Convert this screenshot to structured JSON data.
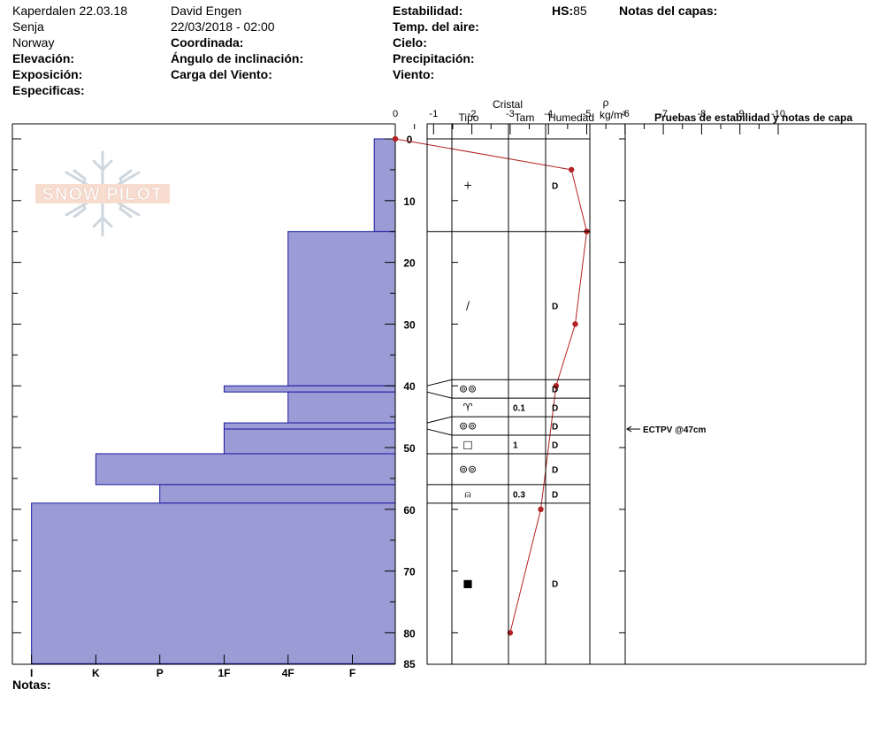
{
  "header": {
    "location_title": "Kaperdalen 22.03.18",
    "region": "Senja",
    "country": "Norway",
    "observer": "David Engen",
    "datetime": "22/03/2018 - 02:00",
    "labels": {
      "elevation": "Elevación:",
      "aspect": "Exposición:",
      "specifics": "Especificas:",
      "coordinate": "Coordinada:",
      "slope": "Ángulo de inclinación:",
      "wind_load": "Carga del Viento:",
      "stability": "Estabilidad:",
      "air_temp": "Temp. del aire:",
      "sky": "Cielo:",
      "precip": "Precipitación:",
      "wind": "Viento:",
      "hs_label": "HS:",
      "layer_notes": "Notas del capas:"
    },
    "hs_value": "85"
  },
  "footer": {
    "notes_label": "Notas:"
  },
  "table_headers": {
    "crystal": "Cristal",
    "type": "Tipo",
    "size": "Tam",
    "moisture": "Humedad",
    "rho": "ρ",
    "density_unit": "kg/m³",
    "tests": "Pruebas de estabilidad y notas de capa"
  },
  "watermark": "SNOW PILOT",
  "colors": {
    "hardness_fill": "#9b9bd6",
    "hardness_stroke": "#1a1aa0",
    "temp_line": "#b22222"
  },
  "chart_data": {
    "type": "snow-profile",
    "temp_axis": {
      "min": -10,
      "max": 0,
      "ticks": [
        "-10",
        "-9",
        "-8",
        "-7",
        "-6",
        "-5",
        "-4",
        "-3",
        "-2",
        "-1",
        "0"
      ]
    },
    "depth_axis": {
      "min": 0,
      "max": 85,
      "major_ticks": [
        0,
        10,
        20,
        30,
        40,
        50,
        60,
        70,
        80
      ],
      "labels": [
        "0",
        "10",
        "20",
        "30",
        "40",
        "50",
        "60",
        "70",
        "80",
        "85"
      ]
    },
    "hardness_axis": {
      "labels": [
        "I",
        "K",
        "P",
        "1F",
        "4F",
        "F"
      ],
      "values": [
        9.5,
        7.82,
        6.15,
        4.47,
        2.8,
        1.12
      ]
    },
    "hardness_layers": [
      {
        "top": 0,
        "bottom": 15,
        "hardness_x": 0.55
      },
      {
        "top": 15,
        "bottom": 40,
        "hardness_x": 2.8
      },
      {
        "top": 40,
        "bottom": 41,
        "hardness_x": 4.47
      },
      {
        "top": 41,
        "bottom": 46,
        "hardness_x": 2.8
      },
      {
        "top": 46,
        "bottom": 47,
        "hardness_x": 4.47
      },
      {
        "top": 47,
        "bottom": 51,
        "hardness_x": 4.47
      },
      {
        "top": 51,
        "bottom": 56,
        "hardness_x": 7.82
      },
      {
        "top": 56,
        "bottom": 59,
        "hardness_x": 6.15
      },
      {
        "top": 59,
        "bottom": 85,
        "hardness_x": 9.5
      }
    ],
    "temperature_profile": [
      {
        "depth": 0,
        "temp": 0.0
      },
      {
        "depth": 5,
        "temp": -4.6
      },
      {
        "depth": 15,
        "temp": -5.0
      },
      {
        "depth": 30,
        "temp": -4.7
      },
      {
        "depth": 40,
        "temp": -4.2
      },
      {
        "depth": 60,
        "temp": -3.8
      },
      {
        "depth": 80,
        "temp": -3.0
      }
    ],
    "layers": [
      {
        "top": 0,
        "bottom": 15,
        "grain": "+",
        "size": "",
        "moisture": "D"
      },
      {
        "top": 15,
        "bottom": 39,
        "grain": "/",
        "size": "",
        "moisture": "D"
      },
      {
        "top": 39,
        "bottom": 42,
        "grain": "⊚⊚",
        "size": "",
        "moisture": "D"
      },
      {
        "top": 42,
        "bottom": 45,
        "grain": "♈",
        "size": "0.1",
        "moisture": "D"
      },
      {
        "top": 45,
        "bottom": 48,
        "grain": "⊚⊚",
        "size": "",
        "moisture": "D"
      },
      {
        "top": 48,
        "bottom": 51,
        "grain": "□",
        "size": "1",
        "moisture": "D"
      },
      {
        "top": 51,
        "bottom": 56,
        "grain": "⊚⊚",
        "size": "",
        "moisture": "D"
      },
      {
        "top": 56,
        "bottom": 59,
        "grain": "⍝",
        "size": "0.3",
        "moisture": "D"
      },
      {
        "top": 59,
        "bottom": 85,
        "grain": "■",
        "size": "",
        "moisture": "D"
      }
    ],
    "stability_tests": [
      {
        "depth": 47,
        "text": "ECTPV @47cm"
      }
    ]
  }
}
